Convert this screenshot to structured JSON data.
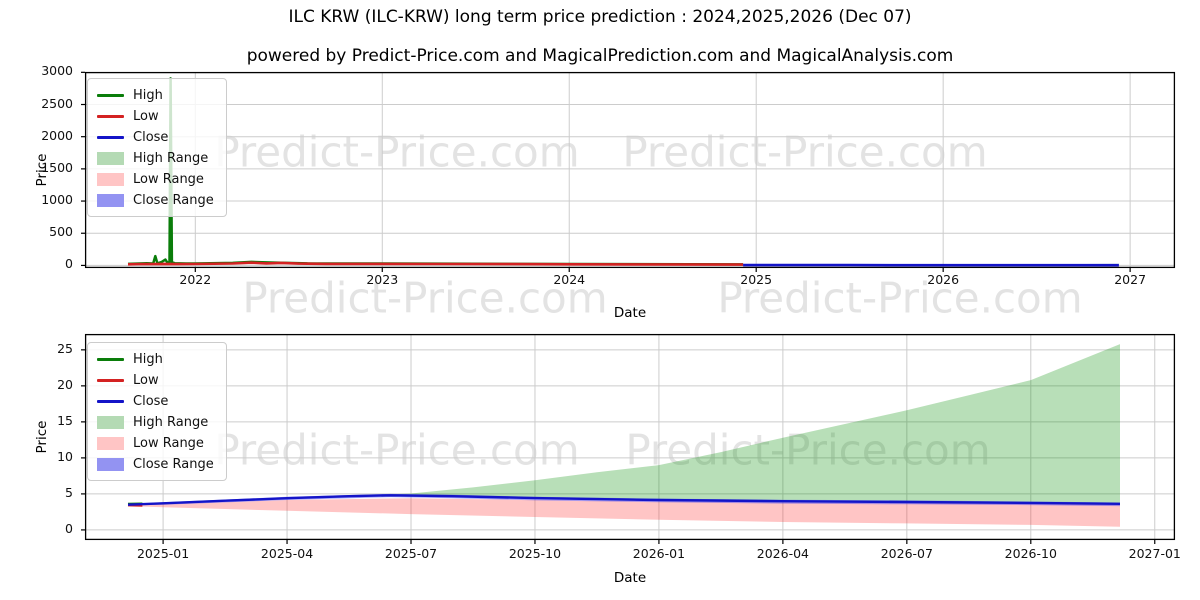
{
  "page": {
    "title": "ILC KRW (ILC-KRW) long term price prediction : 2024,2025,2026 (Dec 07)",
    "subtitle": "powered by Predict-Price.com and MagicalPrediction.com and MagicalAnalysis.com"
  },
  "watermark": {
    "text": "Predict-Price.com"
  },
  "colors": {
    "grid": "#cccccc",
    "spine": "#000000",
    "high_line": "#0a7d0a",
    "low_line": "#d42222",
    "close_line": "#1414c8",
    "high_band": "rgba(0,140,0,0.28)",
    "low_band": "rgba(255,40,40,0.27)",
    "close_band": "rgba(60,60,245,0.45)"
  },
  "chart_data": [
    {
      "type": "line",
      "name": "long-term-history-and-prediction",
      "xlabel": "Date",
      "ylabel": "Price",
      "grid": true,
      "legend_position": "upper-left",
      "xlim": [
        2021.41,
        2027.24
      ],
      "ylim": [
        -40,
        3005
      ],
      "xticks": [
        {
          "v": 2022,
          "label": "2022"
        },
        {
          "v": 2023,
          "label": "2023"
        },
        {
          "v": 2024,
          "label": "2024"
        },
        {
          "v": 2025,
          "label": "2025"
        },
        {
          "v": 2026,
          "label": "2026"
        },
        {
          "v": 2027,
          "label": "2027"
        }
      ],
      "yticks": [
        {
          "v": 0,
          "label": "0"
        },
        {
          "v": 500,
          "label": "500"
        },
        {
          "v": 1000,
          "label": "1000"
        },
        {
          "v": 1500,
          "label": "1500"
        },
        {
          "v": 2000,
          "label": "2000"
        },
        {
          "v": 2500,
          "label": "2500"
        },
        {
          "v": 3000,
          "label": "3000"
        }
      ],
      "legend": [
        {
          "label": "High",
          "type": "line",
          "color": "#0a7d0a"
        },
        {
          "label": "Low",
          "type": "line",
          "color": "#d42222"
        },
        {
          "label": "Close",
          "type": "line",
          "color": "#1414c8"
        },
        {
          "label": "High Range",
          "type": "patch",
          "color": "#b4dab4"
        },
        {
          "label": "Low Range",
          "type": "patch",
          "color": "#ffc5c5"
        },
        {
          "label": "Close Range",
          "type": "patch",
          "color": "#9393f2"
        }
      ],
      "bands": [
        {
          "name": "High Range",
          "fill": "rgba(0,140,0,0.28)",
          "x": [
            2024.93,
            2025.25,
            2025.5,
            2025.75,
            2026.0,
            2026.25,
            2026.5,
            2026.94
          ],
          "upper": [
            4.8,
            5.0,
            5.9,
            6.9,
            9.0,
            12.8,
            16.6,
            25.8
          ],
          "lower": [
            4.2,
            4.2,
            4.2,
            4.2,
            4.1,
            4.0,
            3.95,
            3.7
          ]
        },
        {
          "name": "Low Range",
          "fill": "rgba(255,40,40,0.27)",
          "x": [
            2024.93,
            2025.25,
            2025.5,
            2025.75,
            2026.0,
            2026.25,
            2026.5,
            2026.94
          ],
          "upper": [
            3.6,
            3.6,
            3.55,
            3.5,
            3.5,
            3.5,
            3.5,
            3.5
          ],
          "lower": [
            3.3,
            2.8,
            2.2,
            1.8,
            1.4,
            1.0,
            0.8,
            0.45
          ]
        },
        {
          "name": "Close Range",
          "fill": "rgba(60,60,245,0.45)",
          "x": [
            2024.93,
            2025.25,
            2025.5,
            2025.75,
            2026.0,
            2026.25,
            2026.5,
            2026.94
          ],
          "upper": [
            4.6,
            4.5,
            4.4,
            4.3,
            4.2,
            4.1,
            4.0,
            3.8
          ],
          "lower": [
            4.2,
            4.1,
            4.0,
            3.9,
            3.85,
            3.6,
            3.45,
            3.3
          ]
        }
      ],
      "series": [
        {
          "name": "High",
          "color": "#0a7d0a",
          "width": 2.5,
          "points": [
            [
              2021.64,
              24
            ],
            [
              2021.74,
              35
            ],
            [
              2021.775,
              30
            ],
            [
              2021.786,
              145
            ],
            [
              2021.797,
              32
            ],
            [
              2021.82,
              55
            ],
            [
              2021.84,
              90
            ],
            [
              2021.85,
              45
            ],
            [
              2021.862,
              50
            ],
            [
              2021.868,
              2905
            ],
            [
              2021.875,
              50
            ],
            [
              2021.89,
              35
            ],
            [
              2021.95,
              30
            ],
            [
              2022.0,
              30
            ],
            [
              2022.2,
              40
            ],
            [
              2022.3,
              55
            ],
            [
              2022.4,
              45
            ],
            [
              2022.6,
              32
            ],
            [
              2023.0,
              30
            ],
            [
              2023.5,
              26
            ],
            [
              2024.0,
              22
            ],
            [
              2024.93,
              16
            ]
          ]
        },
        {
          "name": "Low",
          "color": "#d42222",
          "width": 2.6,
          "points": [
            [
              2021.64,
              18
            ],
            [
              2021.72,
              22
            ],
            [
              2021.78,
              20
            ],
            [
              2021.84,
              24
            ],
            [
              2021.9,
              20
            ],
            [
              2022.0,
              22
            ],
            [
              2022.2,
              30
            ],
            [
              2022.3,
              42
            ],
            [
              2022.38,
              32
            ],
            [
              2022.46,
              40
            ],
            [
              2022.55,
              28
            ],
            [
              2022.7,
              24
            ],
            [
              2023.0,
              24
            ],
            [
              2023.3,
              22
            ],
            [
              2023.7,
              20
            ],
            [
              2024.0,
              18
            ],
            [
              2024.4,
              16
            ],
            [
              2024.93,
              13
            ]
          ]
        },
        {
          "name": "Close",
          "color": "#1414c8",
          "width": 2.6,
          "points": [
            [
              2024.93,
              4.5
            ],
            [
              2025.5,
              4.3
            ],
            [
              2026.0,
              4.1
            ],
            [
              2026.5,
              3.9
            ],
            [
              2026.94,
              3.6
            ]
          ]
        }
      ]
    },
    {
      "type": "line",
      "name": "prediction-detail-2025-2027",
      "xlabel": "Date",
      "ylabel": "Price",
      "grid": true,
      "legend_position": "upper-left",
      "x_unit": "months-since-2025-01",
      "xlim": [
        -1.89,
        24.49
      ],
      "ylim": [
        -1.4,
        27.2
      ],
      "xticks": [
        {
          "v": 0,
          "label": "2025-01"
        },
        {
          "v": 3,
          "label": "2025-04"
        },
        {
          "v": 6,
          "label": "2025-07"
        },
        {
          "v": 9,
          "label": "2025-10"
        },
        {
          "v": 12,
          "label": "2026-01"
        },
        {
          "v": 15,
          "label": "2026-04"
        },
        {
          "v": 18,
          "label": "2026-07"
        },
        {
          "v": 21,
          "label": "2026-10"
        },
        {
          "v": 24,
          "label": "2027-01"
        }
      ],
      "yticks": [
        {
          "v": 0,
          "label": "0"
        },
        {
          "v": 5,
          "label": "5"
        },
        {
          "v": 10,
          "label": "10"
        },
        {
          "v": 15,
          "label": "15"
        },
        {
          "v": 20,
          "label": "20"
        },
        {
          "v": 25,
          "label": "25"
        }
      ],
      "legend": [
        {
          "label": "High",
          "type": "line",
          "color": "#0a7d0a"
        },
        {
          "label": "Low",
          "type": "line",
          "color": "#d42222"
        },
        {
          "label": "Close",
          "type": "line",
          "color": "#1414c8"
        },
        {
          "label": "High Range",
          "type": "patch",
          "color": "#b4dab4"
        },
        {
          "label": "Low Range",
          "type": "patch",
          "color": "#ffc5c5"
        },
        {
          "label": "Close Range",
          "type": "patch",
          "color": "#9393f2"
        }
      ],
      "bands": [
        {
          "name": "High Range",
          "fill": "rgba(0,140,0,0.28)",
          "x": [
            -0.85,
            0,
            3,
            5.5,
            6,
            7.5,
            9,
            10.5,
            12,
            13.5,
            15,
            16.5,
            18,
            19.5,
            21,
            23.16
          ],
          "upper": [
            3.6,
            3.8,
            4.55,
            4.95,
            5.05,
            5.9,
            6.9,
            8.0,
            9.0,
            10.8,
            12.8,
            14.7,
            16.6,
            18.7,
            20.8,
            25.8
          ],
          "lower": [
            3.5,
            3.7,
            4.4,
            4.75,
            4.72,
            4.6,
            4.5,
            4.35,
            4.25,
            4.15,
            4.05,
            4.0,
            3.95,
            3.9,
            3.85,
            3.7
          ]
        },
        {
          "name": "Low Range",
          "fill": "rgba(255,40,40,0.27)",
          "x": [
            -0.85,
            0,
            3,
            6,
            9,
            12,
            15,
            18,
            21,
            23.16
          ],
          "upper": [
            3.45,
            3.55,
            4.15,
            4.4,
            4.15,
            3.95,
            3.8,
            3.7,
            3.6,
            3.5
          ],
          "lower": [
            3.3,
            3.15,
            2.65,
            2.2,
            1.8,
            1.4,
            1.1,
            0.9,
            0.7,
            0.45
          ]
        },
        {
          "name": "Close Range",
          "fill": "rgba(60,60,245,0.45)",
          "x": [
            -0.85,
            0,
            3,
            5.5,
            7,
            9,
            12,
            15,
            18,
            21,
            23.16
          ],
          "upper": [
            3.6,
            3.85,
            4.6,
            5.0,
            4.9,
            4.6,
            4.35,
            4.2,
            4.1,
            3.95,
            3.8
          ],
          "lower": [
            3.4,
            3.5,
            4.15,
            4.55,
            4.4,
            4.1,
            3.85,
            3.65,
            3.55,
            3.45,
            3.3
          ]
        }
      ],
      "series": [
        {
          "name": "High",
          "color": "#0a7d0a",
          "width": 2.2,
          "points": [
            [
              -0.85,
              3.62
            ],
            [
              -0.5,
              3.66
            ]
          ]
        },
        {
          "name": "Low",
          "color": "#d42222",
          "width": 2.2,
          "points": [
            [
              -0.85,
              3.42
            ],
            [
              -0.5,
              3.38
            ]
          ]
        },
        {
          "name": "Close",
          "color": "#1414c8",
          "width": 2.4,
          "points": [
            [
              -0.85,
              3.5
            ],
            [
              0,
              3.7
            ],
            [
              1.5,
              4.05
            ],
            [
              3,
              4.4
            ],
            [
              4.5,
              4.68
            ],
            [
              5.5,
              4.8
            ],
            [
              7,
              4.68
            ],
            [
              9,
              4.42
            ],
            [
              10.5,
              4.28
            ],
            [
              12,
              4.15
            ],
            [
              15,
              3.98
            ],
            [
              18,
              3.88
            ],
            [
              21,
              3.75
            ],
            [
              23.16,
              3.62
            ]
          ]
        }
      ]
    }
  ]
}
